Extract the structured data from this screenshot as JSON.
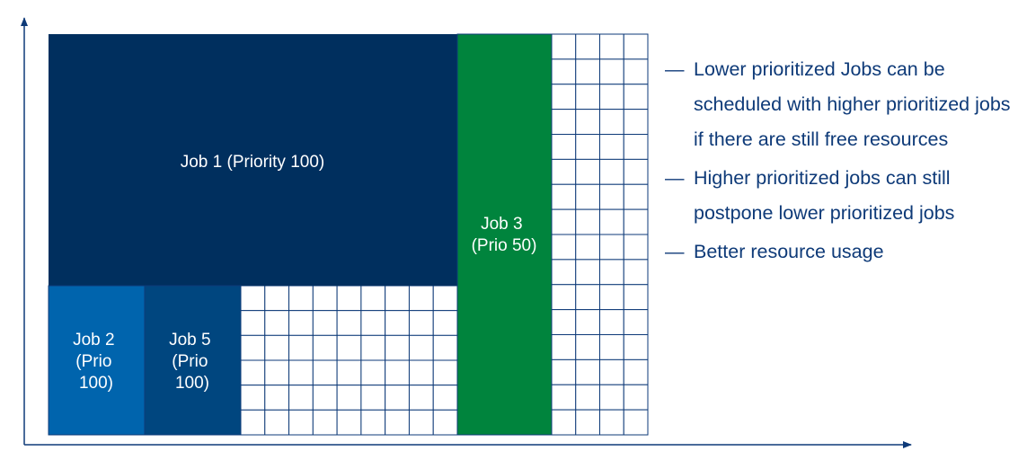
{
  "colors": {
    "job1": "#002f5e",
    "job2": "#0064ad",
    "job5": "#00467f",
    "job3": "#00843d",
    "grid_line": "#0e3a78",
    "axis": "#0e3a78",
    "text": "#0e3a78"
  },
  "jobs": {
    "job1": {
      "lines": [
        "Job 1 (Priority 100)"
      ]
    },
    "job2": {
      "lines": [
        "Job 2",
        "(Prio",
        "100)"
      ]
    },
    "job5": {
      "lines": [
        "Job 5",
        "(Prio",
        "100)"
      ]
    },
    "job3": {
      "lines": [
        "Job 3",
        "(Prio 50)"
      ]
    }
  },
  "bullets": [
    {
      "dash": "—",
      "text": "Lower prioritized Jobs can be scheduled with higher prioritized jobs if there are still free resources"
    },
    {
      "dash": "—",
      "text": "Higher prioritized jobs can still postpone lower prioritized jobs"
    },
    {
      "dash": "—",
      "text": "Better resource usage"
    }
  ]
}
